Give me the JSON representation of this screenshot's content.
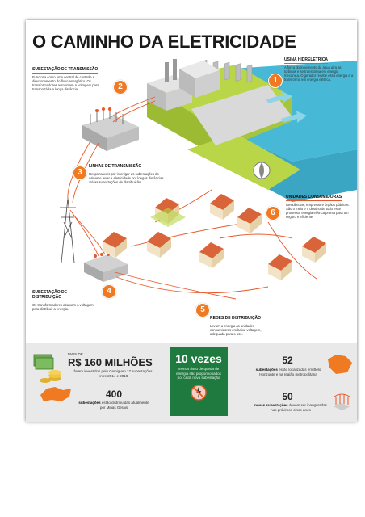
{
  "title": "O CAMINHO DA ELETRICIDADE",
  "steps": [
    {
      "number": "1",
      "heading": "USINA HIDRELÉTRICA",
      "text": "A força do movimento da água gira as turbinas e se transforma em energia mecânica. O gerador recebe essa energia e a transforma em energia elétrica."
    },
    {
      "number": "2",
      "heading": "SUBESTAÇÃO DE TRANSMISSÃO",
      "text": "Funciona como uma central de controle e direcionamento do fluxo energético. Os transformadores aumentam a voltagem para transportá-la a longa distância."
    },
    {
      "number": "3",
      "heading": "LINHAS DE TRANSMISSÃO",
      "text": "Responsáveis por interligar as subestações às usinas e levar a eletricidade por longas distâncias até as subestações de distribuição."
    },
    {
      "number": "4",
      "heading": "SUBESTAÇÃO DE DISTRIBUIÇÃO",
      "text": "Os transformadores abaixam a voltagem para distribuir a energia."
    },
    {
      "number": "5",
      "heading": "REDES DE DISTRIBUIÇÃO",
      "text": "Levam a energia às unidades consumidoras em baixa voltagem, adequada para o uso."
    },
    {
      "number": "6",
      "heading": "UNIDADES CONSUMIDORAS",
      "text": "Residências, empresas e órgãos públicos. São o meio e o destino de todo esse processo: energia elétrica pronta para um seguro e eficiente."
    }
  ],
  "stats": {
    "invest_prefix": "MAIS DE",
    "invest_value": "R$ 160 MILHÕES",
    "invest_text": "foram investidos pela Cemig em 17 subestações entre 2014 e 2018",
    "times_value": "10 vezes",
    "times_text": "menos risco de queda de energia são proporcionados por cada nova subestação",
    "count_400": "400",
    "count_400_bold": "subestações",
    "count_400_text": "estão distribuídas atualmente por Minas Gerais",
    "count_52": "52",
    "count_52_bold": "subestações",
    "count_52_text": "estão localizadas em Belo Horizonte e na região metropolitana",
    "count_50": "50",
    "count_50_bold": "novas subestações",
    "count_50_text": "devem ser inauguradas nos próximos cinco anos"
  },
  "colors": {
    "accent": "#f07a22",
    "green_box": "#1f7a3f",
    "water": "#47b9d6",
    "grass": "#b9d648",
    "roof": "#d9643a",
    "wire": "#e8582a"
  }
}
